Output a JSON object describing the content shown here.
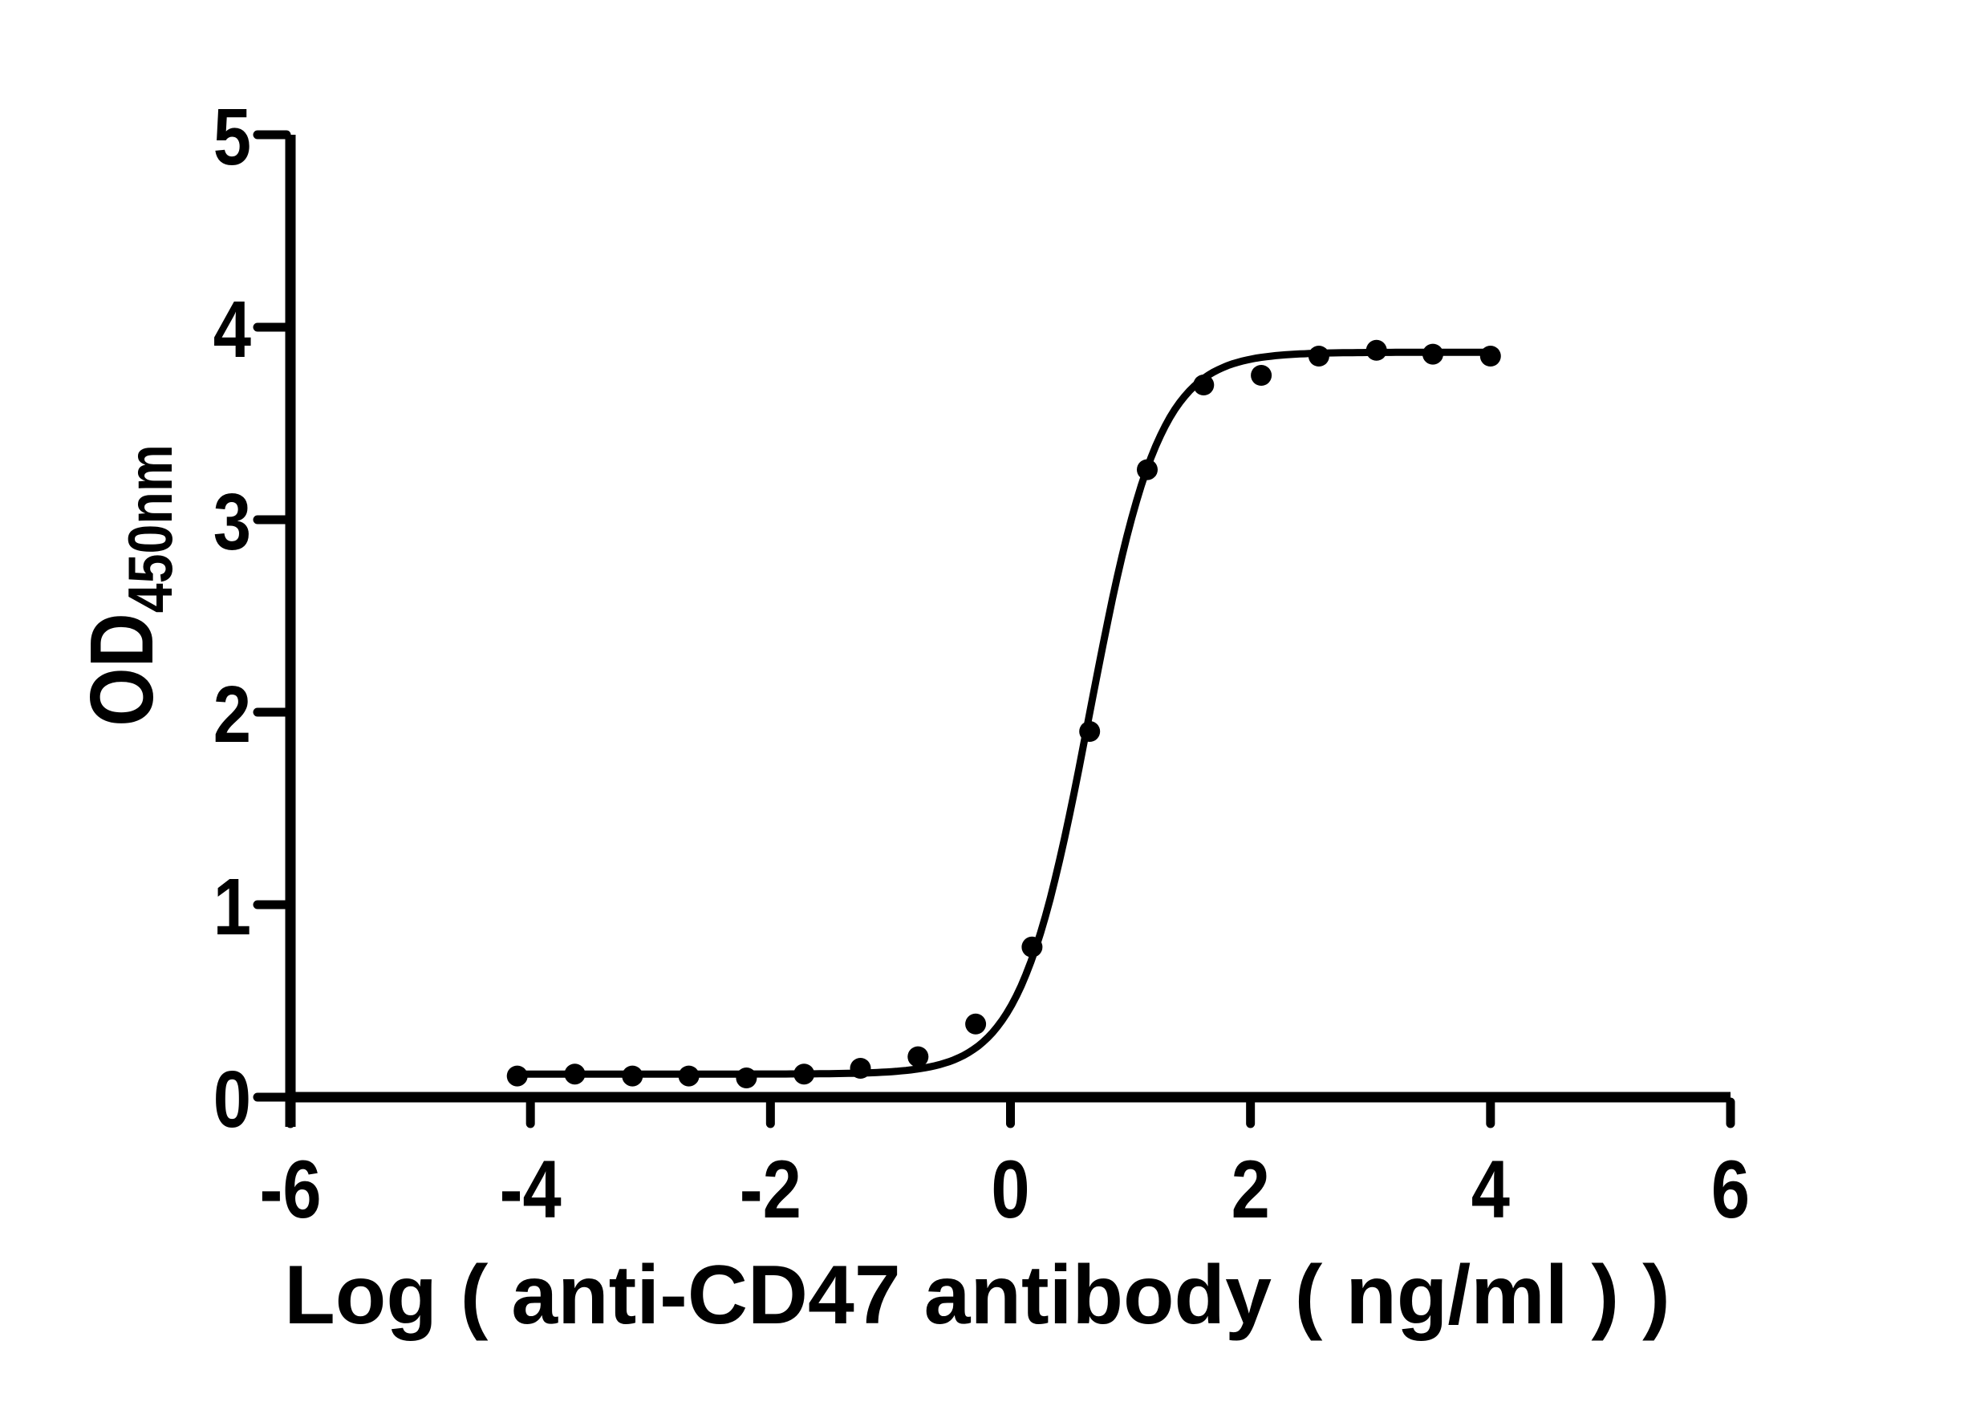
{
  "figure": {
    "background": "#ffffff",
    "ink_color": "#000000"
  },
  "chart_data": {
    "type": "scatter",
    "title": "",
    "xlabel": "Log ( anti-CD47 antibody ( ng/ml )    )",
    "ylabel_base": "OD",
    "ylabel_sub": "450nm",
    "xlim": [
      -6,
      6
    ],
    "ylim": [
      0,
      5
    ],
    "x_ticks": [
      -6,
      -4,
      -2,
      0,
      2,
      4,
      6
    ],
    "y_ticks": [
      0,
      1,
      2,
      3,
      4,
      5
    ],
    "grid": false,
    "legend": null,
    "marker_color": "#000000",
    "line_color": "#000000",
    "points": [
      [
        -4.11,
        0.11
      ],
      [
        -3.63,
        0.12
      ],
      [
        -3.15,
        0.11
      ],
      [
        -2.68,
        0.11
      ],
      [
        -2.2,
        0.1
      ],
      [
        -1.72,
        0.12
      ],
      [
        -1.25,
        0.15
      ],
      [
        -0.77,
        0.21
      ],
      [
        -0.29,
        0.38
      ],
      [
        0.18,
        0.78
      ],
      [
        0.66,
        1.9
      ],
      [
        1.14,
        3.26
      ],
      [
        1.61,
        3.7
      ],
      [
        2.09,
        3.75
      ],
      [
        2.57,
        3.85
      ],
      [
        3.05,
        3.88
      ],
      [
        3.52,
        3.86
      ],
      [
        4.0,
        3.85
      ]
    ],
    "fit_curve": {
      "model": "4PL",
      "bottom": 0.12,
      "top": 3.87,
      "log_ec50": 0.66,
      "hill": 1.5,
      "x_start": -4.11,
      "x_end": 4.0
    }
  }
}
